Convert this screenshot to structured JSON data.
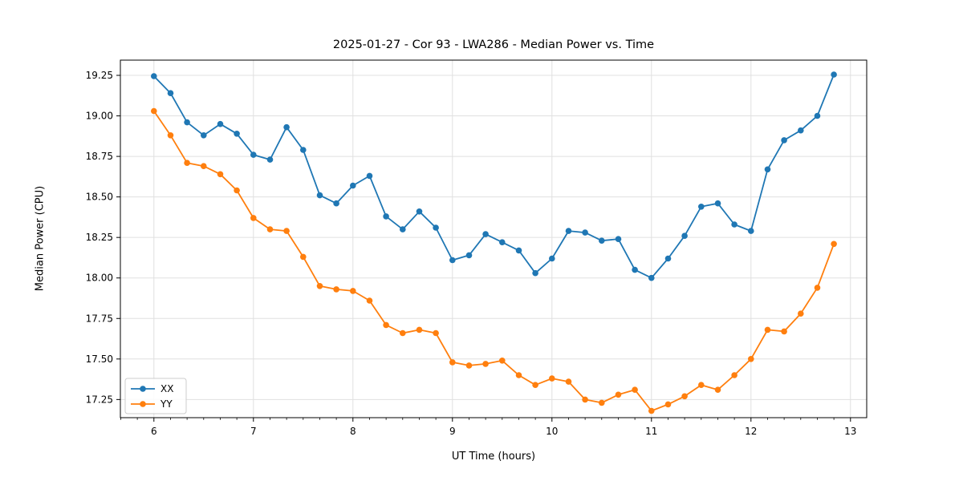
{
  "title": "2025-01-27 - Cor 93 - LWA286 - Median Power vs. Time",
  "colors": {
    "xx": "#1f77b4",
    "yy": "#ff7f0e",
    "grid": "#e0e0e0",
    "spine": "#000000",
    "legend_border": "#cccccc"
  },
  "chart_data": {
    "type": "line",
    "title": "2025-01-27 - Cor 93 - LWA286 - Median Power vs. Time",
    "xlabel": "UT Time (hours)",
    "ylabel": "Median Power (CPU)",
    "xlim": [
      5.663,
      13.163
    ],
    "ylim": [
      17.138,
      19.344
    ],
    "x_ticks": [
      6,
      7,
      8,
      9,
      10,
      11,
      12,
      13
    ],
    "x_minor_tick_step": 0.166667,
    "y_ticks": [
      17.25,
      17.5,
      17.75,
      18.0,
      18.25,
      18.5,
      18.75,
      19.0,
      19.25
    ],
    "grid": true,
    "legend_position": "lower left",
    "marker": "o",
    "x": [
      6.0,
      6.167,
      6.333,
      6.5,
      6.667,
      6.833,
      7.0,
      7.167,
      7.333,
      7.5,
      7.667,
      7.833,
      8.0,
      8.167,
      8.333,
      8.5,
      8.667,
      8.833,
      9.0,
      9.167,
      9.333,
      9.5,
      9.667,
      9.833,
      10.0,
      10.167,
      10.333,
      10.5,
      10.667,
      10.833,
      11.0,
      11.167,
      11.333,
      11.5,
      11.667,
      11.833,
      12.0,
      12.167,
      12.333,
      12.5,
      12.667,
      12.833
    ],
    "series": [
      {
        "name": "XX",
        "color": "#1f77b4",
        "values": [
          19.245,
          19.14,
          18.96,
          18.88,
          18.95,
          18.89,
          18.76,
          18.73,
          18.93,
          18.79,
          18.51,
          18.46,
          18.57,
          18.63,
          18.38,
          18.3,
          18.41,
          18.31,
          18.11,
          18.14,
          18.27,
          18.22,
          18.17,
          18.03,
          18.12,
          18.29,
          18.28,
          18.23,
          18.24,
          18.05,
          18.0,
          18.12,
          18.26,
          18.44,
          18.46,
          18.33,
          18.29,
          18.67,
          18.85,
          18.91,
          19.0,
          19.255
        ]
      },
      {
        "name": "YY",
        "color": "#ff7f0e",
        "values": [
          19.03,
          18.88,
          18.71,
          18.69,
          18.64,
          18.54,
          18.37,
          18.3,
          18.29,
          18.13,
          17.95,
          17.93,
          17.92,
          17.86,
          17.71,
          17.66,
          17.68,
          17.66,
          17.48,
          17.46,
          17.47,
          17.49,
          17.4,
          17.34,
          17.38,
          17.36,
          17.25,
          17.23,
          17.28,
          17.31,
          17.18,
          17.22,
          17.27,
          17.34,
          17.31,
          17.4,
          17.5,
          17.68,
          17.67,
          17.78,
          17.94,
          18.21
        ]
      }
    ]
  }
}
